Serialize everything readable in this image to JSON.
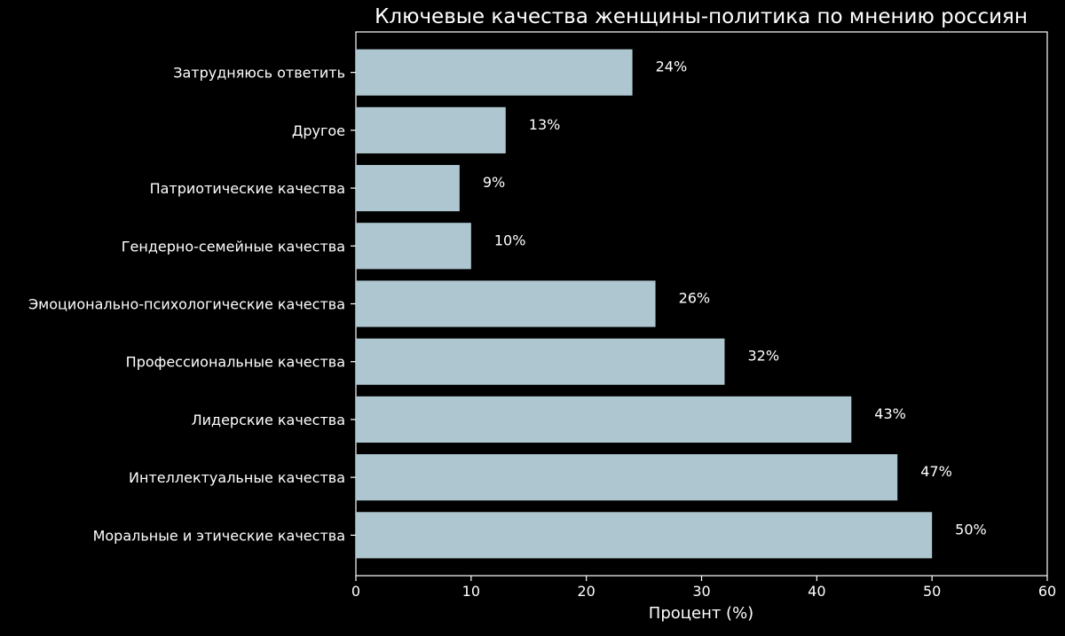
{
  "chart_data": {
    "type": "bar",
    "orientation": "horizontal",
    "title": "Ключевые качества женщины-политика по мнению россиян",
    "xlabel": "Процент (%)",
    "ylabel": "",
    "categories": [
      "Моральные и этические качества",
      "Интеллектуальные качества",
      "Лидерские качества",
      "Профессиональные качества",
      "Эмоционально-психологические качества",
      "Гендерно-семейные качества",
      "Патриотические качества",
      "Другое",
      "Затрудняюсь ответить"
    ],
    "values": [
      50,
      47,
      43,
      32,
      26,
      10,
      9,
      13,
      24
    ],
    "data_labels": [
      "50%",
      "47%",
      "43%",
      "32%",
      "26%",
      "10%",
      "9%",
      "13%",
      "24%"
    ],
    "xlim": [
      0,
      60
    ],
    "xticks": [
      0,
      10,
      20,
      30,
      40,
      50,
      60
    ],
    "xtick_labels": [
      "0",
      "10",
      "20",
      "30",
      "40",
      "50",
      "60"
    ],
    "grid": false,
    "colors": {
      "background": "#000000",
      "bar": "#aec6cf",
      "axis": "#ffffff",
      "text": "#ffffff"
    }
  }
}
